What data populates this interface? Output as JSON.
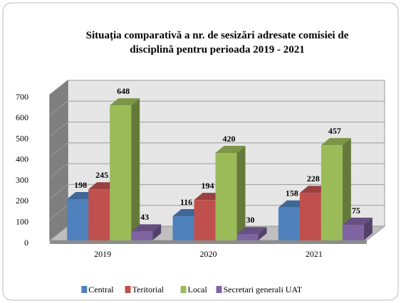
{
  "chart_data": {
    "type": "bar3d",
    "title": "Situația comparativă a nr. de sesizări adresate comisiei de disciplină pentru perioada 2019 - 2021",
    "categories": [
      "2019",
      "2020",
      "2021"
    ],
    "series": [
      {
        "name": "Central",
        "color": "#4f81bd",
        "values": [
          198,
          116,
          158
        ]
      },
      {
        "name": "Teritorial",
        "color": "#c0504d",
        "values": [
          245,
          194,
          228
        ]
      },
      {
        "name": "Local",
        "color": "#9bbb59",
        "values": [
          648,
          420,
          457
        ]
      },
      {
        "name": "Secretari generali UAT",
        "color": "#8064a2",
        "values": [
          43,
          30,
          75
        ]
      }
    ],
    "ylim": [
      0,
      700
    ],
    "yticks": [
      0,
      100,
      200,
      300,
      400,
      500,
      600,
      700
    ],
    "grid": true,
    "legend": "bottom"
  }
}
